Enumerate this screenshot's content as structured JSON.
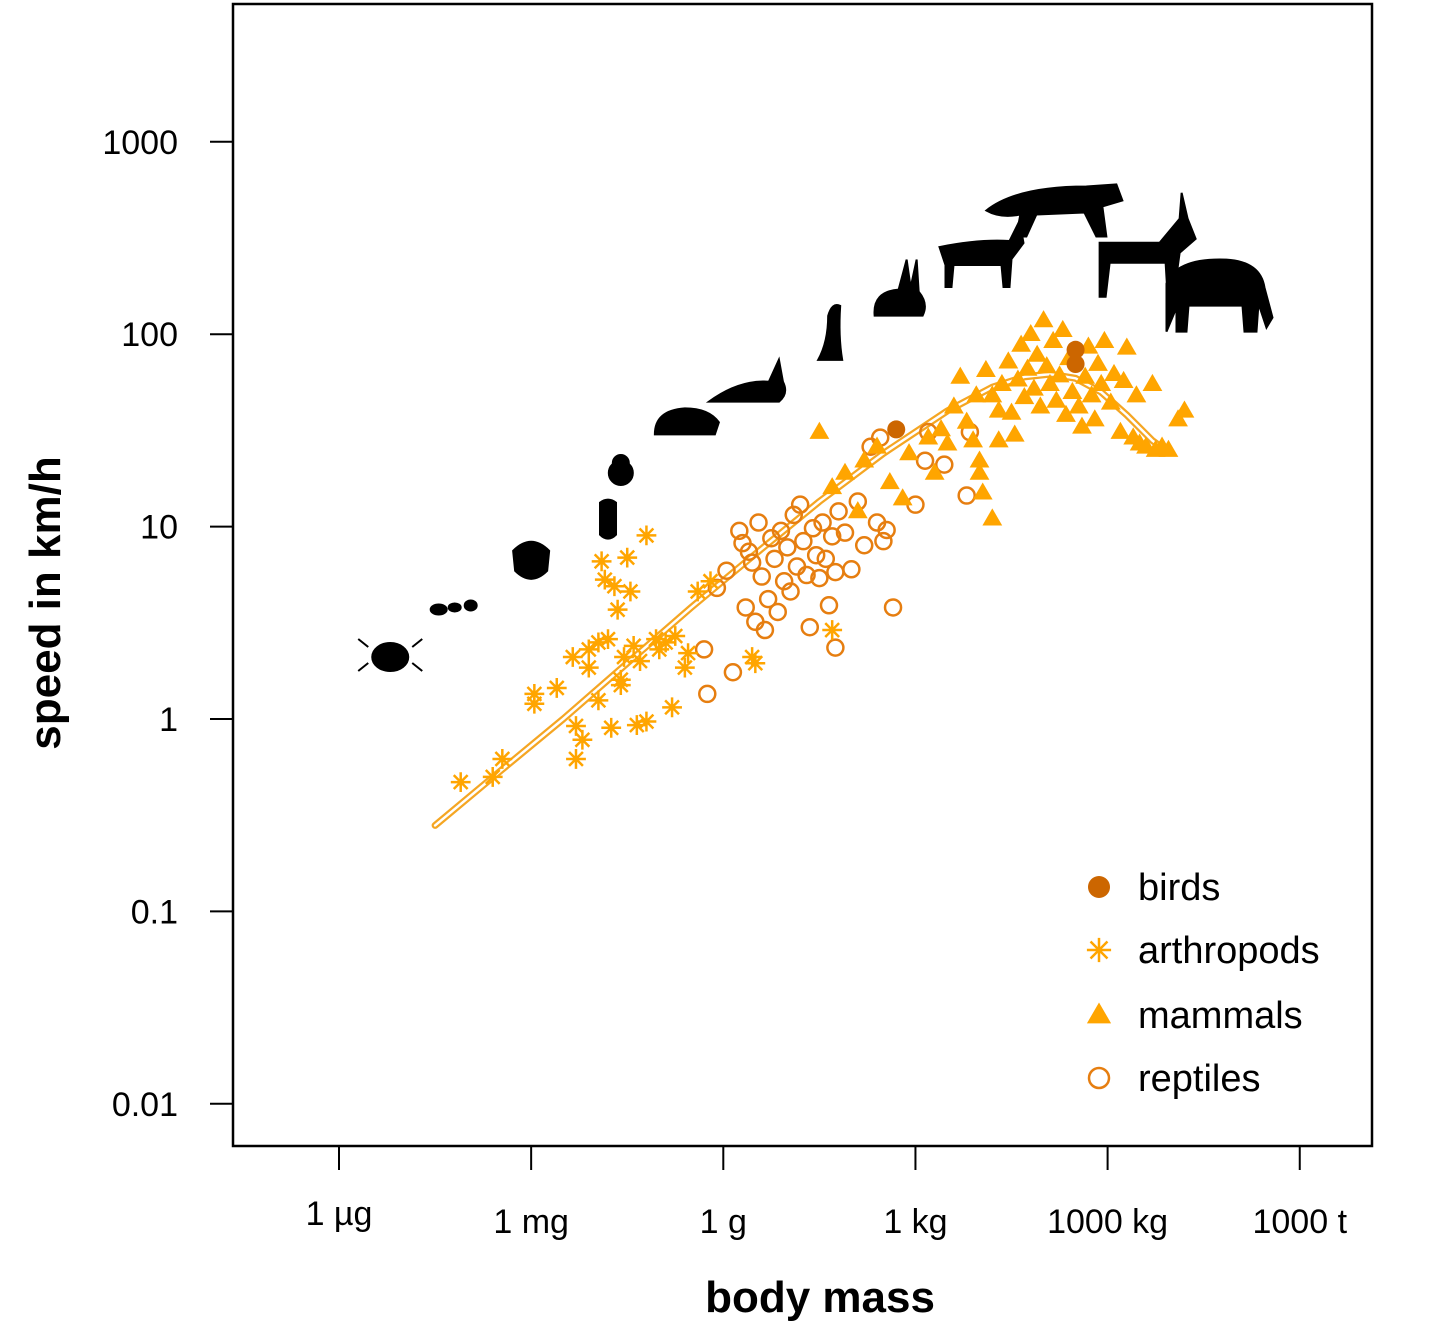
{
  "chart_data": {
    "type": "scatter",
    "title": "",
    "xlabel": "body mass",
    "ylabel": "speed in km/h",
    "x_scale": "log10",
    "y_scale": "log10",
    "x_units": "log10 body mass in kg",
    "xlim": [
      -10.5,
      7.1
    ],
    "ylim_log10": [
      -2.7,
      3.7
    ],
    "x_ticks": [
      {
        "value": -9,
        "label": "1 µg"
      },
      {
        "value": -6,
        "label": "1 mg"
      },
      {
        "value": -3,
        "label": "1 g"
      },
      {
        "value": 0,
        "label": "1 kg"
      },
      {
        "value": 3,
        "label": "1000 kg"
      },
      {
        "value": 6,
        "label": "1000 t"
      }
    ],
    "y_ticks": [
      {
        "value": 1000,
        "label": "1000"
      },
      {
        "value": 100,
        "label": "100"
      },
      {
        "value": 10,
        "label": "10"
      },
      {
        "value": 1,
        "label": "1"
      },
      {
        "value": 0.1,
        "label": "0.1"
      },
      {
        "value": 0.01,
        "label": "0.01"
      }
    ],
    "grid": false,
    "legend_position": "bottom-right",
    "series": [
      {
        "name": "birds",
        "marker": "filled-circle",
        "color": "#CC6600",
        "points": [
          [
            -0.3,
            32
          ],
          [
            2.5,
            83
          ],
          [
            2.5,
            70
          ]
        ]
      },
      {
        "name": "arthropods",
        "marker": "asterisk",
        "color": "#FFA500",
        "points": [
          [
            -7.1,
            0.47
          ],
          [
            -6.6,
            0.5
          ],
          [
            -6.45,
            0.62
          ],
          [
            -5.95,
            1.2
          ],
          [
            -5.95,
            1.35
          ],
          [
            -5.6,
            1.45
          ],
          [
            -5.35,
            2.1
          ],
          [
            -5.3,
            0.92
          ],
          [
            -5.3,
            0.62
          ],
          [
            -5.2,
            0.78
          ],
          [
            -5.1,
            1.85
          ],
          [
            -5.1,
            2.3
          ],
          [
            -4.95,
            2.5
          ],
          [
            -4.95,
            1.25
          ],
          [
            -4.9,
            6.6
          ],
          [
            -4.85,
            5.3
          ],
          [
            -4.8,
            2.6
          ],
          [
            -4.75,
            0.9
          ],
          [
            -4.7,
            4.9
          ],
          [
            -4.65,
            3.7
          ],
          [
            -4.6,
            1.6
          ],
          [
            -4.55,
            2.1
          ],
          [
            -4.5,
            6.9
          ],
          [
            -4.45,
            4.6
          ],
          [
            -4.4,
            2.4
          ],
          [
            -4.35,
            0.93
          ],
          [
            -4.3,
            2.0
          ],
          [
            -4.2,
            9.0
          ],
          [
            -4.2,
            0.97
          ],
          [
            -4.05,
            2.6
          ],
          [
            -3.9,
            2.5
          ],
          [
            -3.8,
            1.15
          ],
          [
            -3.75,
            2.7
          ],
          [
            -3.6,
            1.85
          ],
          [
            -3.55,
            2.2
          ],
          [
            -3.2,
            5.2
          ],
          [
            -2.55,
            2.1
          ],
          [
            -2.5,
            1.95
          ],
          [
            -1.3,
            2.9
          ],
          [
            -4.6,
            1.5
          ],
          [
            -4.0,
            2.3
          ],
          [
            -3.4,
            4.6
          ]
        ]
      },
      {
        "name": "mammals",
        "marker": "filled-triangle",
        "color": "#FFA500",
        "points": [
          [
            -1.5,
            31
          ],
          [
            -1.3,
            16
          ],
          [
            -1.1,
            19
          ],
          [
            -0.9,
            12
          ],
          [
            -0.8,
            22
          ],
          [
            -0.6,
            26
          ],
          [
            -0.4,
            17
          ],
          [
            -0.2,
            14
          ],
          [
            -0.1,
            24
          ],
          [
            0.2,
            29
          ],
          [
            0.3,
            19
          ],
          [
            0.5,
            27
          ],
          [
            0.6,
            42
          ],
          [
            0.7,
            60
          ],
          [
            0.8,
            35
          ],
          [
            0.9,
            28
          ],
          [
            0.95,
            48
          ],
          [
            1.0,
            19
          ],
          [
            1.05,
            15
          ],
          [
            1.1,
            65
          ],
          [
            1.2,
            48
          ],
          [
            1.2,
            11
          ],
          [
            1.3,
            40
          ],
          [
            1.35,
            55
          ],
          [
            1.45,
            72
          ],
          [
            1.5,
            39
          ],
          [
            1.55,
            30
          ],
          [
            1.6,
            58
          ],
          [
            1.65,
            88
          ],
          [
            1.7,
            47
          ],
          [
            1.75,
            66
          ],
          [
            1.8,
            100
          ],
          [
            1.85,
            52
          ],
          [
            1.9,
            78
          ],
          [
            1.95,
            42
          ],
          [
            2.0,
            118
          ],
          [
            2.05,
            68
          ],
          [
            2.1,
            55
          ],
          [
            2.15,
            92
          ],
          [
            2.2,
            45
          ],
          [
            2.25,
            61
          ],
          [
            2.3,
            105
          ],
          [
            2.35,
            38
          ],
          [
            2.4,
            75
          ],
          [
            2.45,
            50
          ],
          [
            2.55,
            42
          ],
          [
            2.6,
            33
          ],
          [
            2.65,
            60
          ],
          [
            2.7,
            86
          ],
          [
            2.75,
            48
          ],
          [
            2.8,
            36
          ],
          [
            2.85,
            70
          ],
          [
            2.9,
            55
          ],
          [
            2.95,
            92
          ],
          [
            3.05,
            44
          ],
          [
            3.1,
            62
          ],
          [
            3.2,
            31
          ],
          [
            3.25,
            57
          ],
          [
            3.3,
            85
          ],
          [
            3.4,
            29
          ],
          [
            3.45,
            48
          ],
          [
            3.5,
            27
          ],
          [
            3.6,
            26
          ],
          [
            3.7,
            55
          ],
          [
            3.75,
            25
          ],
          [
            3.85,
            26
          ],
          [
            3.95,
            25
          ],
          [
            4.1,
            36
          ],
          [
            4.2,
            40
          ],
          [
            1.3,
            28
          ],
          [
            1.0,
            22
          ],
          [
            0.4,
            32
          ]
        ]
      },
      {
        "name": "reptiles",
        "marker": "open-circle",
        "color": "#E67E10",
        "points": [
          [
            -3.3,
            2.3
          ],
          [
            -3.25,
            1.35
          ],
          [
            -3.1,
            4.8
          ],
          [
            -2.95,
            5.9
          ],
          [
            -2.85,
            1.75
          ],
          [
            -2.75,
            9.5
          ],
          [
            -2.7,
            8.2
          ],
          [
            -2.65,
            3.8
          ],
          [
            -2.6,
            7.4
          ],
          [
            -2.55,
            6.5
          ],
          [
            -2.5,
            3.2
          ],
          [
            -2.45,
            10.5
          ],
          [
            -2.4,
            5.5
          ],
          [
            -2.35,
            2.9
          ],
          [
            -2.3,
            4.2
          ],
          [
            -2.25,
            8.7
          ],
          [
            -2.2,
            6.8
          ],
          [
            -2.15,
            3.6
          ],
          [
            -2.1,
            9.5
          ],
          [
            -2.05,
            5.2
          ],
          [
            -2.0,
            7.8
          ],
          [
            -1.95,
            4.6
          ],
          [
            -1.9,
            11.5
          ],
          [
            -1.85,
            6.2
          ],
          [
            -1.8,
            13
          ],
          [
            -1.75,
            8.4
          ],
          [
            -1.7,
            5.6
          ],
          [
            -1.65,
            3.0
          ],
          [
            -1.6,
            9.8
          ],
          [
            -1.55,
            7.1
          ],
          [
            -1.5,
            5.4
          ],
          [
            -1.45,
            10.5
          ],
          [
            -1.4,
            6.8
          ],
          [
            -1.35,
            3.9
          ],
          [
            -1.3,
            8.9
          ],
          [
            -1.25,
            5.8
          ],
          [
            -1.2,
            12
          ],
          [
            -1.1,
            9.3
          ],
          [
            -1.0,
            6.0
          ],
          [
            -0.9,
            13.5
          ],
          [
            -0.8,
            8.0
          ],
          [
            -0.7,
            26
          ],
          [
            -0.6,
            10.5
          ],
          [
            -0.55,
            29
          ],
          [
            -0.5,
            8.4
          ],
          [
            -0.45,
            9.6
          ],
          [
            -0.35,
            3.8
          ],
          [
            0.0,
            13
          ],
          [
            0.15,
            22
          ],
          [
            0.2,
            31
          ],
          [
            0.45,
            21
          ],
          [
            0.8,
            14.5
          ],
          [
            0.85,
            31
          ],
          [
            -1.25,
            2.35
          ]
        ]
      }
    ],
    "fit_curve": {
      "name": "fitted model",
      "color": "#F5A623",
      "points": [
        [
          -7.5,
          0.28
        ],
        [
          -6.5,
          0.53
        ],
        [
          -5.5,
          1.0
        ],
        [
          -4.5,
          1.95
        ],
        [
          -3.5,
          3.8
        ],
        [
          -2.5,
          7.2
        ],
        [
          -1.5,
          13.5
        ],
        [
          -0.5,
          24
        ],
        [
          0.5,
          40
        ],
        [
          1.2,
          53
        ],
        [
          1.7,
          60
        ],
        [
          2.1,
          62
        ],
        [
          2.5,
          59
        ],
        [
          2.9,
          50
        ],
        [
          3.3,
          38
        ],
        [
          3.7,
          28
        ],
        [
          3.9,
          25
        ]
      ]
    },
    "silhouettes": [
      {
        "name": "mite",
        "x": -8.2,
        "y": 2.1
      },
      {
        "name": "ant",
        "x": -7.1,
        "y": 3.8
      },
      {
        "name": "stink-bug",
        "x": -6.0,
        "y": 6.8
      },
      {
        "name": "beetle",
        "x": -4.8,
        "y": 11
      },
      {
        "name": "spider",
        "x": -4.6,
        "y": 19
      },
      {
        "name": "mouse",
        "x": -3.6,
        "y": 34
      },
      {
        "name": "chinchilla",
        "x": -2.6,
        "y": 54
      },
      {
        "name": "ferret",
        "x": -1.3,
        "y": 98
      },
      {
        "name": "hare",
        "x": -0.2,
        "y": 155
      },
      {
        "name": "goat",
        "x": 1.0,
        "y": 240
      },
      {
        "name": "cheetah",
        "x": 2.2,
        "y": 390
      },
      {
        "name": "reindeer",
        "x": 3.5,
        "y": 235
      },
      {
        "name": "elephant",
        "x": 4.7,
        "y": 155
      }
    ]
  }
}
